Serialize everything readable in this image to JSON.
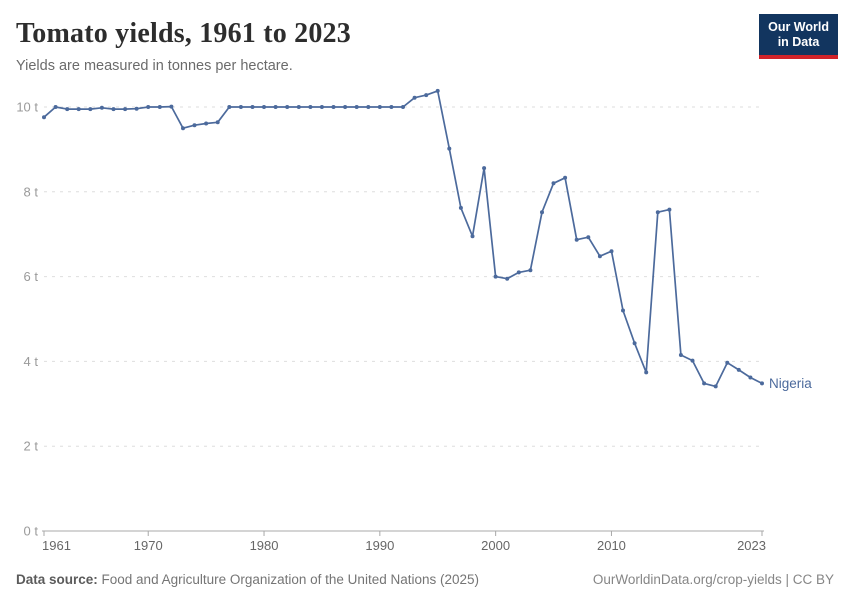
{
  "header": {
    "title": "Tomato yields, 1961 to 2023",
    "subtitle": "Yields are measured in tonnes per hectare.",
    "logo": {
      "line1": "Our World",
      "line2": "in Data",
      "bg": "#12355f",
      "accent": "#d1232a"
    }
  },
  "footer": {
    "source_label": "Data source:",
    "source_text": " Food and Agriculture Organization of the United Nations (2025)",
    "credit": "OurWorldinData.org/crop-yields | CC BY"
  },
  "chart_data": {
    "type": "line",
    "title": "Tomato yields, 1961 to 2023",
    "unit": "tonnes per hectare",
    "xlim": [
      1961,
      2023
    ],
    "ylim": [
      0,
      10.5
    ],
    "x_ticks": [
      1961,
      1970,
      1980,
      1990,
      2000,
      2010,
      2023
    ],
    "y_ticks": [
      0,
      2,
      4,
      6,
      8,
      10
    ],
    "y_tick_suffix": " t",
    "grid": "horizontal-dashed",
    "legend_position": "end-of-line-label",
    "colors": {
      "line": "#4c6a9c",
      "grid": "#dedede",
      "axis": "#a8a8a8",
      "y_tick_label": "#9a9a9a",
      "x_tick_label": "#676767"
    },
    "series": [
      {
        "name": "Nigeria",
        "x": [
          1961,
          1962,
          1963,
          1964,
          1965,
          1966,
          1967,
          1968,
          1969,
          1970,
          1971,
          1972,
          1973,
          1974,
          1975,
          1976,
          1977,
          1978,
          1979,
          1980,
          1981,
          1982,
          1983,
          1984,
          1985,
          1986,
          1987,
          1988,
          1989,
          1990,
          1991,
          1992,
          1993,
          1994,
          1995,
          1996,
          1997,
          1998,
          1999,
          2000,
          2001,
          2002,
          2003,
          2004,
          2005,
          2006,
          2007,
          2008,
          2009,
          2010,
          2011,
          2012,
          2013,
          2014,
          2015,
          2016,
          2017,
          2018,
          2019,
          2020,
          2021,
          2022,
          2023
        ],
        "values": [
          9.76,
          10.0,
          9.95,
          9.95,
          9.95,
          9.98,
          9.95,
          9.95,
          9.96,
          10.0,
          10.0,
          10.01,
          9.5,
          9.57,
          9.61,
          9.64,
          10.0,
          10.0,
          10.0,
          10.0,
          10.0,
          10.0,
          10.0,
          10.0,
          10.0,
          10.0,
          10.0,
          10.0,
          10.0,
          10.0,
          10.0,
          10.0,
          10.22,
          10.28,
          10.38,
          9.02,
          7.62,
          6.95,
          8.56,
          6.0,
          5.95,
          6.1,
          6.15,
          7.52,
          8.2,
          8.33,
          6.87,
          6.93,
          6.48,
          6.6,
          5.2,
          4.43,
          3.74,
          7.52,
          7.58,
          4.15,
          4.02,
          3.48,
          3.41,
          3.97,
          3.8,
          3.62,
          3.48
        ]
      }
    ]
  }
}
